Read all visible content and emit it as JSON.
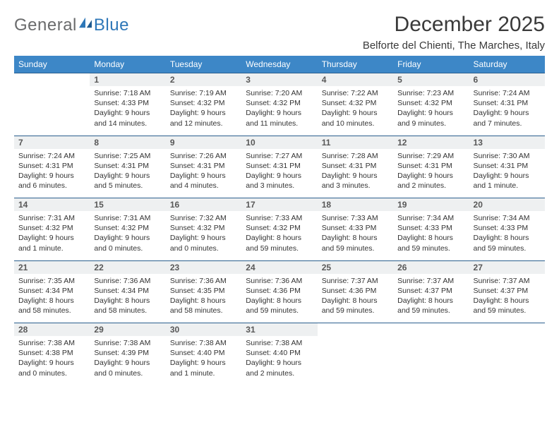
{
  "logo": {
    "text1": "General",
    "text2": "Blue"
  },
  "title": "December 2025",
  "subtitle": "Belforte del Chienti, The Marches, Italy",
  "colors": {
    "header_bg": "#3d87c7",
    "header_text": "#ffffff",
    "daynum_bg": "#eef0f1",
    "daynum_text": "#585858",
    "border": "#2b5f8e",
    "logo_gray": "#6a6b6c",
    "logo_blue": "#2e77b8",
    "body_text": "#333333"
  },
  "weekdays": [
    "Sunday",
    "Monday",
    "Tuesday",
    "Wednesday",
    "Thursday",
    "Friday",
    "Saturday"
  ],
  "weeks": [
    {
      "nums": [
        "",
        "1",
        "2",
        "3",
        "4",
        "5",
        "6"
      ],
      "cells": [
        null,
        {
          "sunrise": "Sunrise: 7:18 AM",
          "sunset": "Sunset: 4:33 PM",
          "daylight": "Daylight: 9 hours and 14 minutes."
        },
        {
          "sunrise": "Sunrise: 7:19 AM",
          "sunset": "Sunset: 4:32 PM",
          "daylight": "Daylight: 9 hours and 12 minutes."
        },
        {
          "sunrise": "Sunrise: 7:20 AM",
          "sunset": "Sunset: 4:32 PM",
          "daylight": "Daylight: 9 hours and 11 minutes."
        },
        {
          "sunrise": "Sunrise: 7:22 AM",
          "sunset": "Sunset: 4:32 PM",
          "daylight": "Daylight: 9 hours and 10 minutes."
        },
        {
          "sunrise": "Sunrise: 7:23 AM",
          "sunset": "Sunset: 4:32 PM",
          "daylight": "Daylight: 9 hours and 9 minutes."
        },
        {
          "sunrise": "Sunrise: 7:24 AM",
          "sunset": "Sunset: 4:31 PM",
          "daylight": "Daylight: 9 hours and 7 minutes."
        }
      ]
    },
    {
      "nums": [
        "7",
        "8",
        "9",
        "10",
        "11",
        "12",
        "13"
      ],
      "cells": [
        {
          "sunrise": "Sunrise: 7:24 AM",
          "sunset": "Sunset: 4:31 PM",
          "daylight": "Daylight: 9 hours and 6 minutes."
        },
        {
          "sunrise": "Sunrise: 7:25 AM",
          "sunset": "Sunset: 4:31 PM",
          "daylight": "Daylight: 9 hours and 5 minutes."
        },
        {
          "sunrise": "Sunrise: 7:26 AM",
          "sunset": "Sunset: 4:31 PM",
          "daylight": "Daylight: 9 hours and 4 minutes."
        },
        {
          "sunrise": "Sunrise: 7:27 AM",
          "sunset": "Sunset: 4:31 PM",
          "daylight": "Daylight: 9 hours and 3 minutes."
        },
        {
          "sunrise": "Sunrise: 7:28 AM",
          "sunset": "Sunset: 4:31 PM",
          "daylight": "Daylight: 9 hours and 3 minutes."
        },
        {
          "sunrise": "Sunrise: 7:29 AM",
          "sunset": "Sunset: 4:31 PM",
          "daylight": "Daylight: 9 hours and 2 minutes."
        },
        {
          "sunrise": "Sunrise: 7:30 AM",
          "sunset": "Sunset: 4:31 PM",
          "daylight": "Daylight: 9 hours and 1 minute."
        }
      ]
    },
    {
      "nums": [
        "14",
        "15",
        "16",
        "17",
        "18",
        "19",
        "20"
      ],
      "cells": [
        {
          "sunrise": "Sunrise: 7:31 AM",
          "sunset": "Sunset: 4:32 PM",
          "daylight": "Daylight: 9 hours and 1 minute."
        },
        {
          "sunrise": "Sunrise: 7:31 AM",
          "sunset": "Sunset: 4:32 PM",
          "daylight": "Daylight: 9 hours and 0 minutes."
        },
        {
          "sunrise": "Sunrise: 7:32 AM",
          "sunset": "Sunset: 4:32 PM",
          "daylight": "Daylight: 9 hours and 0 minutes."
        },
        {
          "sunrise": "Sunrise: 7:33 AM",
          "sunset": "Sunset: 4:32 PM",
          "daylight": "Daylight: 8 hours and 59 minutes."
        },
        {
          "sunrise": "Sunrise: 7:33 AM",
          "sunset": "Sunset: 4:33 PM",
          "daylight": "Daylight: 8 hours and 59 minutes."
        },
        {
          "sunrise": "Sunrise: 7:34 AM",
          "sunset": "Sunset: 4:33 PM",
          "daylight": "Daylight: 8 hours and 59 minutes."
        },
        {
          "sunrise": "Sunrise: 7:34 AM",
          "sunset": "Sunset: 4:33 PM",
          "daylight": "Daylight: 8 hours and 59 minutes."
        }
      ]
    },
    {
      "nums": [
        "21",
        "22",
        "23",
        "24",
        "25",
        "26",
        "27"
      ],
      "cells": [
        {
          "sunrise": "Sunrise: 7:35 AM",
          "sunset": "Sunset: 4:34 PM",
          "daylight": "Daylight: 8 hours and 58 minutes."
        },
        {
          "sunrise": "Sunrise: 7:36 AM",
          "sunset": "Sunset: 4:34 PM",
          "daylight": "Daylight: 8 hours and 58 minutes."
        },
        {
          "sunrise": "Sunrise: 7:36 AM",
          "sunset": "Sunset: 4:35 PM",
          "daylight": "Daylight: 8 hours and 58 minutes."
        },
        {
          "sunrise": "Sunrise: 7:36 AM",
          "sunset": "Sunset: 4:36 PM",
          "daylight": "Daylight: 8 hours and 59 minutes."
        },
        {
          "sunrise": "Sunrise: 7:37 AM",
          "sunset": "Sunset: 4:36 PM",
          "daylight": "Daylight: 8 hours and 59 minutes."
        },
        {
          "sunrise": "Sunrise: 7:37 AM",
          "sunset": "Sunset: 4:37 PM",
          "daylight": "Daylight: 8 hours and 59 minutes."
        },
        {
          "sunrise": "Sunrise: 7:37 AM",
          "sunset": "Sunset: 4:37 PM",
          "daylight": "Daylight: 8 hours and 59 minutes."
        }
      ]
    },
    {
      "nums": [
        "28",
        "29",
        "30",
        "31",
        "",
        "",
        ""
      ],
      "cells": [
        {
          "sunrise": "Sunrise: 7:38 AM",
          "sunset": "Sunset: 4:38 PM",
          "daylight": "Daylight: 9 hours and 0 minutes."
        },
        {
          "sunrise": "Sunrise: 7:38 AM",
          "sunset": "Sunset: 4:39 PM",
          "daylight": "Daylight: 9 hours and 0 minutes."
        },
        {
          "sunrise": "Sunrise: 7:38 AM",
          "sunset": "Sunset: 4:40 PM",
          "daylight": "Daylight: 9 hours and 1 minute."
        },
        {
          "sunrise": "Sunrise: 7:38 AM",
          "sunset": "Sunset: 4:40 PM",
          "daylight": "Daylight: 9 hours and 2 minutes."
        },
        null,
        null,
        null
      ]
    }
  ]
}
